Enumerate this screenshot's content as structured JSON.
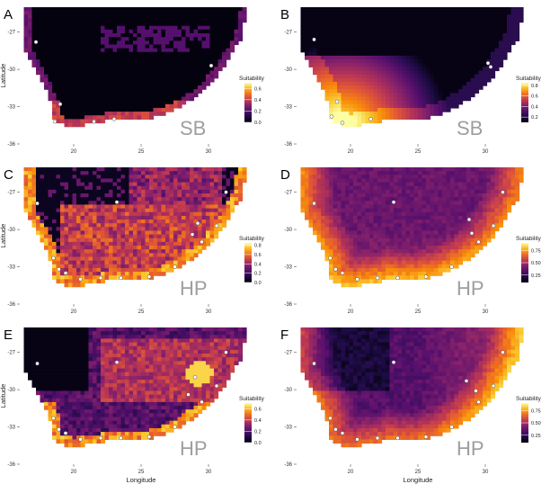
{
  "figure": {
    "x_axis_label": "Longitude",
    "y_axis_label": "Latitude",
    "legend_title": "Suitability",
    "colors": {
      "low": "#000004",
      "mid": "#b63679",
      "high": "#fcfdbf",
      "background": "#ffffff",
      "points": "#ffffff"
    }
  },
  "chart_data": [
    {
      "panel": "A",
      "type": "heatmap",
      "tag": "SB",
      "xlabel": "",
      "ylabel": "Latitude",
      "x_ticks": [
        "20",
        "25",
        "30"
      ],
      "y_ticks": [
        "-27",
        "-30",
        "-33",
        "-36"
      ],
      "xlim": [
        16,
        34
      ],
      "ylim": [
        -36,
        -25
      ],
      "legend": {
        "title": "Suitability",
        "ticks": [
          "0.0",
          "0.2",
          "0.4",
          "0.6"
        ],
        "range": [
          0,
          0.7
        ]
      },
      "pattern": "coastal-narrow",
      "points": [
        [
          17.2,
          -27.8
        ],
        [
          19.0,
          -32.8
        ],
        [
          21.5,
          -34.2
        ],
        [
          18.6,
          -34.2
        ],
        [
          30.2,
          -29.7
        ],
        [
          23.0,
          -34.0
        ]
      ]
    },
    {
      "panel": "B",
      "type": "heatmap",
      "tag": "SB",
      "xlabel": "",
      "ylabel": "",
      "x_ticks": [
        "20",
        "25",
        "30"
      ],
      "y_ticks": [
        "-27",
        "-30",
        "-33",
        "-36"
      ],
      "xlim": [
        16,
        34
      ],
      "ylim": [
        -36,
        -25
      ],
      "legend": {
        "title": "Suitability",
        "ticks": [
          "0.2",
          "0.4",
          "0.6",
          "0.8"
        ],
        "range": [
          0.1,
          0.85
        ]
      },
      "pattern": "southwest-gradient",
      "points": [
        [
          17.3,
          -27.6
        ],
        [
          19.0,
          -32.6
        ],
        [
          18.6,
          -33.8
        ],
        [
          19.4,
          -34.3
        ],
        [
          21.5,
          -34.0
        ],
        [
          30.2,
          -29.5
        ],
        [
          30.4,
          -29.8
        ]
      ]
    },
    {
      "panel": "C",
      "type": "heatmap",
      "tag": "HP",
      "xlabel": "",
      "ylabel": "Latitude",
      "x_ticks": [
        "20",
        "25",
        "30"
      ],
      "y_ticks": [
        "-27",
        "-30",
        "-33",
        "-36"
      ],
      "xlim": [
        16,
        34
      ],
      "ylim": [
        -36,
        -25
      ],
      "legend": {
        "title": "Suitability",
        "ticks": [
          "0.0",
          "0.2",
          "0.4",
          "0.6",
          "0.8"
        ],
        "range": [
          0,
          0.85
        ]
      },
      "pattern": "interior-patchy",
      "points": [
        [
          17.3,
          -27.9
        ],
        [
          23.2,
          -27.8
        ],
        [
          31.3,
          -27.0
        ],
        [
          29.2,
          -29.5
        ],
        [
          28.8,
          -30.4
        ],
        [
          18.5,
          -32.3
        ],
        [
          18.9,
          -33.2
        ],
        [
          19.4,
          -33.5
        ],
        [
          20.5,
          -34.0
        ],
        [
          22.0,
          -33.9
        ],
        [
          23.5,
          -33.9
        ],
        [
          25.6,
          -33.8
        ],
        [
          27.5,
          -33.0
        ],
        [
          29.5,
          -31.0
        ],
        [
          30.6,
          -29.7
        ]
      ]
    },
    {
      "panel": "D",
      "type": "heatmap",
      "tag": "HP",
      "xlabel": "",
      "ylabel": "",
      "x_ticks": [
        "20",
        "25",
        "30"
      ],
      "y_ticks": [
        "-27",
        "-30",
        "-33",
        "-36"
      ],
      "xlim": [
        16,
        34
      ],
      "ylim": [
        -36,
        -25
      ],
      "legend": {
        "title": "Suitability",
        "ticks": [
          "0.25",
          "0.50",
          "0.75"
        ],
        "range": [
          0.1,
          0.9
        ]
      },
      "pattern": "coastal-broad",
      "points": [
        [
          17.3,
          -27.9
        ],
        [
          23.2,
          -27.8
        ],
        [
          31.3,
          -27.0
        ],
        [
          28.8,
          -29.2
        ],
        [
          29.0,
          -30.3
        ],
        [
          18.5,
          -32.3
        ],
        [
          18.9,
          -33.2
        ],
        [
          19.4,
          -33.5
        ],
        [
          20.5,
          -34.0
        ],
        [
          22.0,
          -33.9
        ],
        [
          23.5,
          -33.9
        ],
        [
          25.6,
          -33.8
        ],
        [
          27.5,
          -33.0
        ],
        [
          29.5,
          -31.0
        ],
        [
          30.6,
          -29.7
        ]
      ]
    },
    {
      "panel": "E",
      "type": "heatmap",
      "tag": "HP",
      "xlabel": "Longitude",
      "ylabel": "Latitude",
      "x_ticks": [
        "20",
        "25",
        "30"
      ],
      "y_ticks": [
        "-27",
        "-30",
        "-33",
        "-36"
      ],
      "xlim": [
        16,
        34
      ],
      "ylim": [
        -36,
        -25
      ],
      "legend": {
        "title": "Suitability",
        "ticks": [
          "0.0",
          "0.2",
          "0.4",
          "0.6"
        ],
        "range": [
          0,
          0.7
        ]
      },
      "pattern": "interior-hotspot",
      "points": [
        [
          17.3,
          -27.9
        ],
        [
          23.2,
          -27.8
        ],
        [
          31.3,
          -27.0
        ],
        [
          29.0,
          -29.0
        ],
        [
          28.5,
          -30.4
        ],
        [
          18.5,
          -32.3
        ],
        [
          18.9,
          -33.2
        ],
        [
          19.4,
          -33.5
        ],
        [
          20.5,
          -34.0
        ],
        [
          22.0,
          -33.9
        ],
        [
          23.5,
          -33.9
        ],
        [
          25.6,
          -33.8
        ],
        [
          27.5,
          -33.0
        ],
        [
          29.5,
          -31.0
        ],
        [
          30.6,
          -29.7
        ]
      ]
    },
    {
      "panel": "F",
      "type": "heatmap",
      "tag": "HP",
      "xlabel": "Longitude",
      "ylabel": "",
      "x_ticks": [
        "20",
        "25",
        "30"
      ],
      "y_ticks": [
        "-27",
        "-30",
        "-33",
        "-36"
      ],
      "xlim": [
        16,
        34
      ],
      "ylim": [
        -36,
        -25
      ],
      "legend": {
        "title": "Suitability",
        "ticks": [
          "0.25",
          "0.50",
          "0.75"
        ],
        "range": [
          0.1,
          0.9
        ]
      },
      "pattern": "east-bright",
      "points": [
        [
          17.3,
          -27.9
        ],
        [
          23.2,
          -27.8
        ],
        [
          31.3,
          -27.0
        ],
        [
          28.6,
          -29.3
        ],
        [
          29.3,
          -30.1
        ],
        [
          18.5,
          -32.3
        ],
        [
          18.9,
          -33.2
        ],
        [
          19.4,
          -33.5
        ],
        [
          20.5,
          -34.0
        ],
        [
          22.0,
          -33.9
        ],
        [
          23.5,
          -33.9
        ],
        [
          25.6,
          -33.8
        ],
        [
          27.5,
          -33.0
        ],
        [
          29.5,
          -31.0
        ],
        [
          30.6,
          -29.7
        ]
      ]
    }
  ]
}
